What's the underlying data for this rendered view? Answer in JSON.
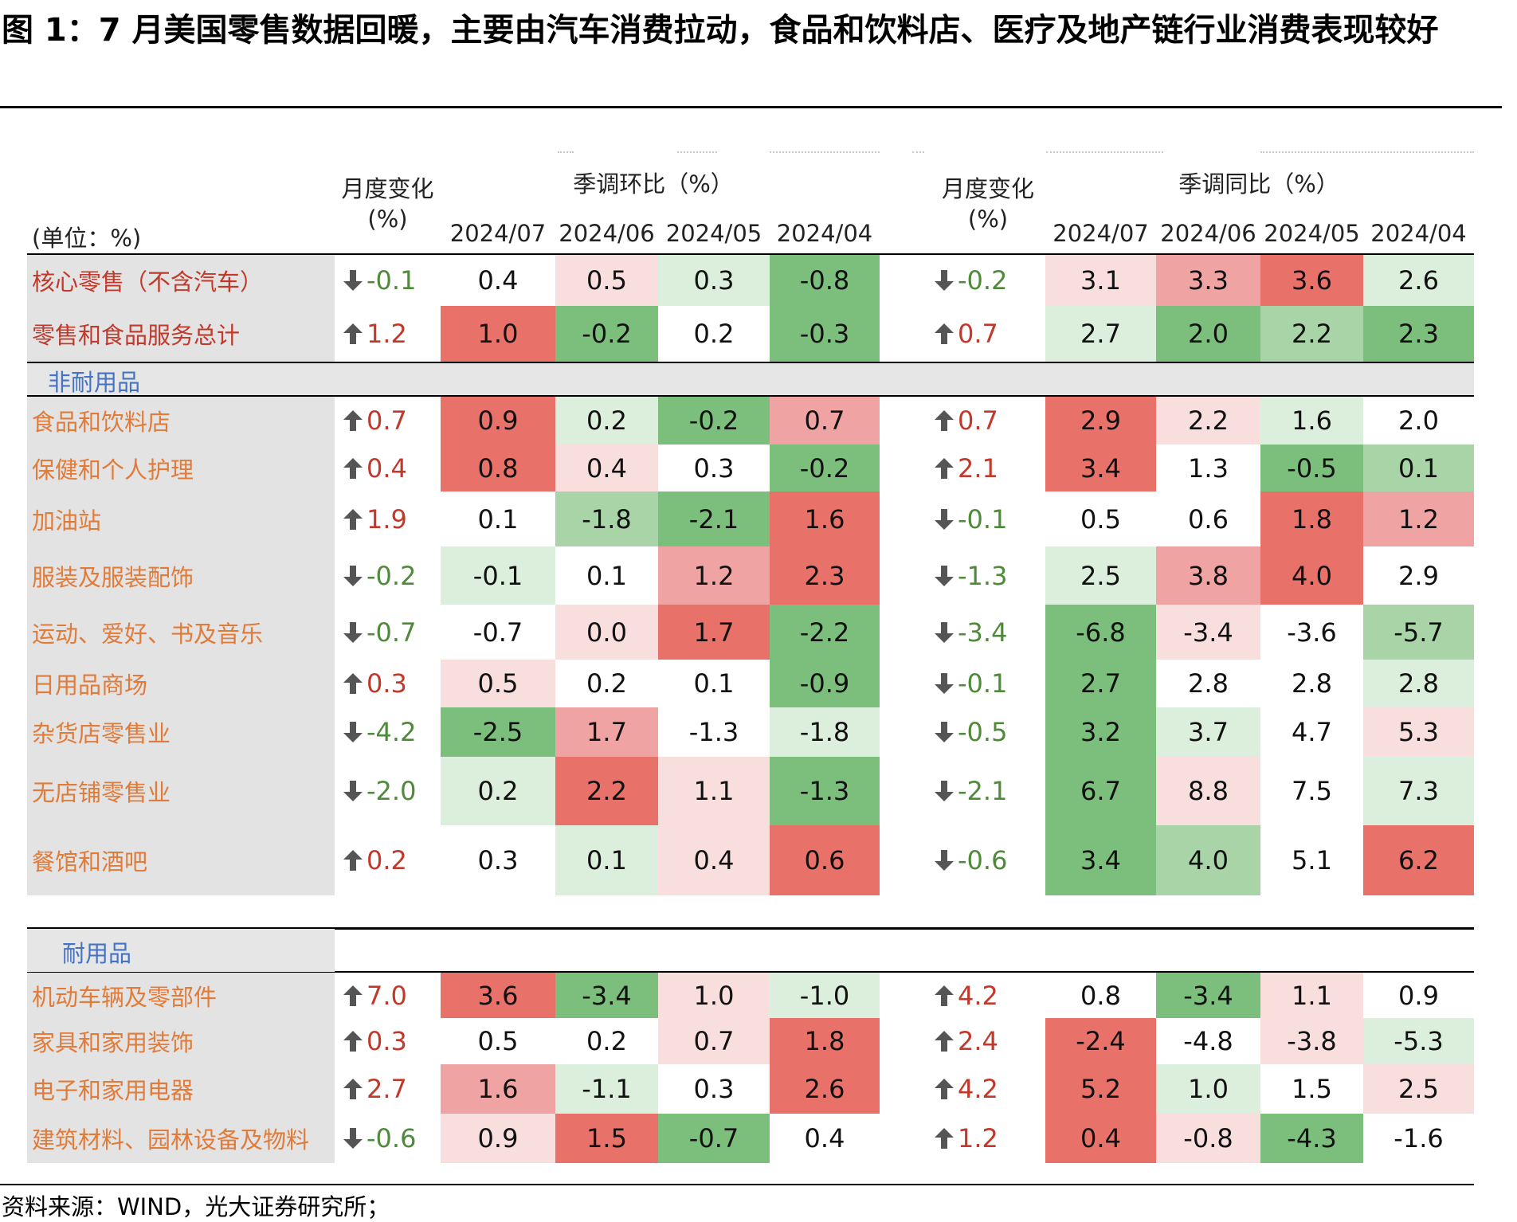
{
  "title": "图 1：7 月美国零售数据回暖，主要由汽车消费拉动，食品和饮料店、医疗及地产链行业消费表现较好",
  "source": "资料来源：WIND，光大证券研究所；",
  "colors": {
    "red_strong": "#e8716a",
    "red_mid": "#f0a3a3",
    "red_light": "#f9dede",
    "green_strong": "#7cbf7c",
    "green_mid": "#a8d4a8",
    "green_light": "#dcefdc",
    "white": "#ffffff",
    "label_core": "#c0392b",
    "label_cat": "#e07b39",
    "section": "#4472c4",
    "up": "#c0392b",
    "down": "#4f8a3a"
  },
  "chart_data": {
    "type": "table",
    "unit_label": "(单位：%)",
    "groups": [
      {
        "change_header_line1": "月度变化",
        "change_header_line2": "(%)",
        "header": "季调环比（%）",
        "dates": [
          "2024/07",
          "2024/06",
          "2024/05",
          "2024/04"
        ]
      },
      {
        "change_header_line1": "月度变化",
        "change_header_line2": "(%)",
        "header": "季调同比（%）",
        "dates": [
          "2024/07",
          "2024/06",
          "2024/05",
          "2024/04"
        ]
      }
    ],
    "sections": [
      {
        "name": "",
        "rows": [
          {
            "label": "核心零售（不含汽车）",
            "kind": "core",
            "mom_change": -0.1,
            "mom": [
              0.4,
              0.5,
              0.3,
              -0.8
            ],
            "mom_change_text": "-0.1",
            "mom_text": [
              "0.4",
              "0.5",
              "0.3",
              "-0.8"
            ],
            "mom_shade": [
              "w",
              "rl",
              "gl",
              "gs"
            ],
            "yoy_change": -0.2,
            "yoy_change_text": "-0.2",
            "yoy": [
              3.1,
              3.3,
              3.6,
              2.6
            ],
            "yoy_text": [
              "3.1",
              "3.3",
              "3.6",
              "2.6"
            ],
            "yoy_shade": [
              "rl",
              "rm",
              "rs",
              "gl"
            ]
          },
          {
            "label": "零售和食品服务总计",
            "kind": "core",
            "mom_change": 1.2,
            "mom_change_text": "1.2",
            "mom": [
              1.0,
              -0.2,
              0.2,
              -0.3
            ],
            "mom_text": [
              "1.0",
              "-0.2",
              "0.2",
              "-0.3"
            ],
            "mom_shade": [
              "rs",
              "gs",
              "w",
              "gs"
            ],
            "yoy_change": 0.7,
            "yoy_change_text": "0.7",
            "yoy": [
              2.7,
              2.0,
              2.2,
              2.3
            ],
            "yoy_text": [
              "2.7",
              "2.0",
              "2.2",
              "2.3"
            ],
            "yoy_shade": [
              "gl",
              "gs",
              "gm",
              "gs"
            ]
          }
        ]
      },
      {
        "name": "非耐用品",
        "rows": [
          {
            "label": "食品和饮料店",
            "kind": "cat",
            "mom_change": 0.7,
            "mom_change_text": "0.7",
            "mom": [
              0.9,
              0.2,
              -0.2,
              0.7
            ],
            "mom_text": [
              "0.9",
              "0.2",
              "-0.2",
              "0.7"
            ],
            "mom_shade": [
              "rs",
              "gl",
              "gs",
              "rm"
            ],
            "yoy_change": 0.7,
            "yoy_change_text": "0.7",
            "yoy": [
              2.9,
              2.2,
              1.6,
              2.0
            ],
            "yoy_text": [
              "2.9",
              "2.2",
              "1.6",
              "2.0"
            ],
            "yoy_shade": [
              "rs",
              "rl",
              "gl",
              "w"
            ]
          },
          {
            "label": "保健和个人护理",
            "kind": "cat",
            "mom_change": 0.4,
            "mom_change_text": "0.4",
            "mom": [
              0.8,
              0.4,
              0.3,
              -0.2
            ],
            "mom_text": [
              "0.8",
              "0.4",
              "0.3",
              "-0.2"
            ],
            "mom_shade": [
              "rs",
              "rl",
              "w",
              "gs"
            ],
            "yoy_change": 2.1,
            "yoy_change_text": "2.1",
            "yoy": [
              3.4,
              1.3,
              -0.5,
              0.1
            ],
            "yoy_text": [
              "3.4",
              "1.3",
              "-0.5",
              "0.1"
            ],
            "yoy_shade": [
              "rs",
              "w",
              "gs",
              "gm"
            ]
          },
          {
            "label": "加油站",
            "kind": "cat",
            "mom_change": 1.9,
            "mom_change_text": "1.9",
            "mom": [
              0.1,
              -1.8,
              -2.1,
              1.6
            ],
            "mom_text": [
              "0.1",
              "-1.8",
              "-2.1",
              "1.6"
            ],
            "mom_shade": [
              "w",
              "gm",
              "gs",
              "rs"
            ],
            "yoy_change": -0.1,
            "yoy_change_text": "-0.1",
            "yoy": [
              0.5,
              0.6,
              1.8,
              1.2
            ],
            "yoy_text": [
              "0.5",
              "0.6",
              "1.8",
              "1.2"
            ],
            "yoy_shade": [
              "w",
              "w",
              "rs",
              "rm"
            ]
          },
          {
            "label": "服装及服装配饰",
            "kind": "cat",
            "mom_change": -0.2,
            "mom_change_text": "-0.2",
            "mom": [
              -0.1,
              0.1,
              1.2,
              2.3
            ],
            "mom_text": [
              "-0.1",
              "0.1",
              "1.2",
              "2.3"
            ],
            "mom_shade": [
              "gl",
              "w",
              "rm",
              "rs"
            ],
            "yoy_change": -1.3,
            "yoy_change_text": "-1.3",
            "yoy": [
              2.5,
              3.8,
              4.0,
              2.9
            ],
            "yoy_text": [
              "2.5",
              "3.8",
              "4.0",
              "2.9"
            ],
            "yoy_shade": [
              "gl",
              "rm",
              "rs",
              "w"
            ]
          },
          {
            "label": "运动、爱好、书及音乐",
            "kind": "cat",
            "mom_change": -0.7,
            "mom_change_text": "-0.7",
            "mom": [
              -0.7,
              0.0,
              1.7,
              -2.2
            ],
            "mom_text": [
              "-0.7",
              "0.0",
              "1.7",
              "-2.2"
            ],
            "mom_shade": [
              "w",
              "rl",
              "rs",
              "gs"
            ],
            "yoy_change": -3.4,
            "yoy_change_text": "-3.4",
            "yoy": [
              -6.8,
              -3.4,
              -3.6,
              -5.7
            ],
            "yoy_text": [
              "-6.8",
              "-3.4",
              "-3.6",
              "-5.7"
            ],
            "yoy_shade": [
              "gs",
              "rl",
              "w",
              "gm"
            ]
          },
          {
            "label": "日用品商场",
            "kind": "cat",
            "mom_change": 0.3,
            "mom_change_text": "0.3",
            "mom": [
              0.5,
              0.2,
              0.1,
              -0.9
            ],
            "mom_text": [
              "0.5",
              "0.2",
              "0.1",
              "-0.9"
            ],
            "mom_shade": [
              "rl",
              "w",
              "w",
              "gs"
            ],
            "yoy_change": -0.1,
            "yoy_change_text": "-0.1",
            "yoy": [
              2.7,
              2.8,
              2.8,
              2.8
            ],
            "yoy_text": [
              "2.7",
              "2.8",
              "2.8",
              "2.8"
            ],
            "yoy_shade": [
              "gs",
              "w",
              "w",
              "gl"
            ]
          },
          {
            "label": "杂货店零售业",
            "kind": "cat",
            "mom_change": -4.2,
            "mom_change_text": "-4.2",
            "mom": [
              -2.5,
              1.7,
              -1.3,
              -1.8
            ],
            "mom_text": [
              "-2.5",
              "1.7",
              "-1.3",
              "-1.8"
            ],
            "mom_shade": [
              "gs",
              "rm",
              "w",
              "gl"
            ],
            "yoy_change": -0.5,
            "yoy_change_text": "-0.5",
            "yoy": [
              3.2,
              3.7,
              4.7,
              5.3
            ],
            "yoy_text": [
              "3.2",
              "3.7",
              "4.7",
              "5.3"
            ],
            "yoy_shade": [
              "gs",
              "gl",
              "w",
              "rl"
            ]
          },
          {
            "label": "无店铺零售业",
            "kind": "cat",
            "mom_change": -2.0,
            "mom_change_text": "-2.0",
            "mom": [
              0.2,
              2.2,
              1.1,
              -1.3
            ],
            "mom_text": [
              "0.2",
              "2.2",
              "1.1",
              "-1.3"
            ],
            "mom_shade": [
              "gl",
              "rs",
              "rl",
              "gs"
            ],
            "yoy_change": -2.1,
            "yoy_change_text": "-2.1",
            "yoy": [
              6.7,
              8.8,
              7.5,
              7.3
            ],
            "yoy_text": [
              "6.7",
              "8.8",
              "7.5",
              "7.3"
            ],
            "yoy_shade": [
              "gs",
              "rl",
              "w",
              "gl"
            ]
          },
          {
            "label": "餐馆和酒吧",
            "kind": "cat",
            "mom_change": 0.2,
            "mom_change_text": "0.2",
            "mom": [
              0.3,
              0.1,
              0.4,
              0.6
            ],
            "mom_text": [
              "0.3",
              "0.1",
              "0.4",
              "0.6"
            ],
            "mom_shade": [
              "w",
              "gl",
              "rl",
              "rs"
            ],
            "yoy_change": -0.6,
            "yoy_change_text": "-0.6",
            "yoy": [
              3.4,
              4.0,
              5.1,
              6.2
            ],
            "yoy_text": [
              "3.4",
              "4.0",
              "5.1",
              "6.2"
            ],
            "yoy_shade": [
              "gs",
              "gm",
              "w",
              "rs"
            ]
          }
        ]
      },
      {
        "name": "耐用品",
        "rows": [
          {
            "label": "机动车辆及零部件",
            "kind": "cat",
            "mom_change": 7.0,
            "mom_change_text": "7.0",
            "mom": [
              3.6,
              -3.4,
              1.0,
              -1.0
            ],
            "mom_text": [
              "3.6",
              "-3.4",
              "1.0",
              "-1.0"
            ],
            "mom_shade": [
              "rs",
              "gs",
              "rl",
              "gl"
            ],
            "yoy_change": 4.2,
            "yoy_change_text": "4.2",
            "yoy": [
              0.8,
              -3.4,
              1.1,
              0.9
            ],
            "yoy_text": [
              "0.8",
              "-3.4",
              "1.1",
              "0.9"
            ],
            "yoy_shade": [
              "w",
              "gs",
              "rl",
              "w"
            ]
          },
          {
            "label": "家具和家用装饰",
            "kind": "cat",
            "mom_change": 0.3,
            "mom_change_text": "0.3",
            "mom": [
              0.5,
              0.2,
              0.7,
              1.8
            ],
            "mom_text": [
              "0.5",
              "0.2",
              "0.7",
              "1.8"
            ],
            "mom_shade": [
              "w",
              "w",
              "rl",
              "rs"
            ],
            "yoy_change": 2.4,
            "yoy_change_text": "2.4",
            "yoy": [
              -2.4,
              -4.8,
              -3.8,
              -5.3
            ],
            "yoy_text": [
              "-2.4",
              "-4.8",
              "-3.8",
              "-5.3"
            ],
            "yoy_shade": [
              "rs",
              "w",
              "rl",
              "gl"
            ]
          },
          {
            "label": "电子和家用电器",
            "kind": "cat",
            "mom_change": 2.7,
            "mom_change_text": "2.7",
            "mom": [
              1.6,
              -1.1,
              0.3,
              2.6
            ],
            "mom_text": [
              "1.6",
              "-1.1",
              "0.3",
              "2.6"
            ],
            "mom_shade": [
              "rm",
              "gl",
              "w",
              "rs"
            ],
            "yoy_change": 4.2,
            "yoy_change_text": "4.2",
            "yoy": [
              5.2,
              1.0,
              1.5,
              2.5
            ],
            "yoy_text": [
              "5.2",
              "1.0",
              "1.5",
              "2.5"
            ],
            "yoy_shade": [
              "rs",
              "gl",
              "w",
              "rl"
            ]
          },
          {
            "label": "建筑材料、园林设备及物料",
            "kind": "cat",
            "mom_change": -0.6,
            "mom_change_text": "-0.6",
            "mom": [
              0.9,
              1.5,
              -0.7,
              0.4
            ],
            "mom_text": [
              "0.9",
              "1.5",
              "-0.7",
              "0.4"
            ],
            "mom_shade": [
              "rl",
              "rs",
              "gs",
              "w"
            ],
            "yoy_change": 1.2,
            "yoy_change_text": "1.2",
            "yoy": [
              0.4,
              -0.8,
              -4.3,
              -1.6
            ],
            "yoy_text": [
              "0.4",
              "-0.8",
              "-4.3",
              "-1.6"
            ],
            "yoy_shade": [
              "rs",
              "rl",
              "gs",
              "w"
            ]
          }
        ]
      }
    ]
  }
}
